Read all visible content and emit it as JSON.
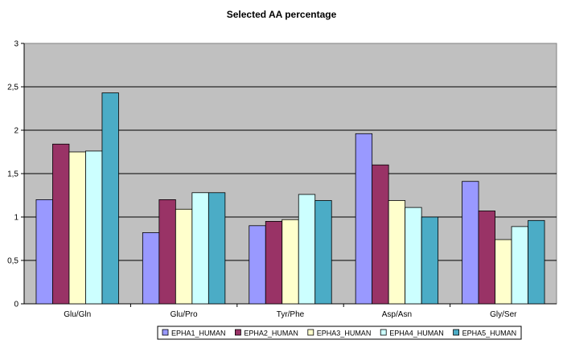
{
  "chart_data": {
    "type": "bar",
    "title": "Selected AA percentage",
    "xlabel": "",
    "ylabel": "",
    "categories": [
      "Glu/Gln",
      "Glu/Pro",
      "Tyr/Phe",
      "Asp/Asn",
      "Gly/Ser"
    ],
    "ylim": [
      0,
      3
    ],
    "yticks": [
      "0",
      "0,5",
      "1",
      "1,5",
      "2",
      "2,5",
      "3"
    ],
    "ytick_values": [
      0,
      0.5,
      1,
      1.5,
      2,
      2.5,
      3
    ],
    "grid": true,
    "legend_position": "bottom",
    "plot_background": "#c0c0c0",
    "series": [
      {
        "name": "EPHA1_HUMAN",
        "color": "#9999ff",
        "values": [
          1.2,
          0.82,
          0.9,
          1.96,
          1.41
        ]
      },
      {
        "name": "EPHA2_HUMAN",
        "color": "#993366",
        "values": [
          1.84,
          1.2,
          0.95,
          1.6,
          1.07
        ]
      },
      {
        "name": "EPHA3_HUMAN",
        "color": "#ffffcc",
        "values": [
          1.75,
          1.09,
          0.97,
          1.19,
          0.74
        ]
      },
      {
        "name": "EPHA4_HUMAN",
        "color": "#ccffff",
        "values": [
          1.76,
          1.28,
          1.26,
          1.11,
          0.89
        ]
      },
      {
        "name": "EPHA5_HUMAN",
        "color": "#4bacc6",
        "values": [
          2.43,
          1.28,
          1.19,
          1.0,
          0.96
        ]
      }
    ]
  }
}
